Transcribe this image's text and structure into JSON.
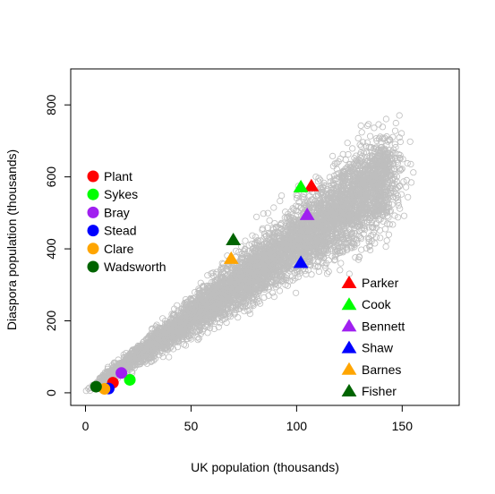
{
  "chart_data": {
    "type": "scatter",
    "xlabel": "UK population (thousands)",
    "ylabel": "Diaspora population (thousands)",
    "xlim": [
      -7,
      177
    ],
    "ylim": [
      -35,
      900
    ],
    "x_ticks": [
      0,
      50,
      100,
      150
    ],
    "y_ticks": [
      0,
      200,
      400,
      600,
      800
    ],
    "x_tick_labels": [
      "0",
      "50",
      "100",
      "150"
    ],
    "y_tick_labels": [
      "0",
      "200",
      "400",
      "600",
      "800"
    ],
    "grid": false,
    "background_cloud": {
      "color": "#bebebe",
      "marker": "open-circle",
      "approx_points": 6000,
      "trend_slope_per_thousand": 4.2,
      "x_range": [
        0,
        170
      ],
      "y_range": [
        0,
        865
      ]
    },
    "highlight_circles": [
      {
        "name": "Plant",
        "color": "#ff0000",
        "x": 13,
        "y": 28
      },
      {
        "name": "Sykes",
        "color": "#00ff00",
        "x": 21,
        "y": 36
      },
      {
        "name": "Bray",
        "color": "#a020f0",
        "x": 17,
        "y": 55
      },
      {
        "name": "Stead",
        "color": "#0000ff",
        "x": 11,
        "y": 12
      },
      {
        "name": "Clare",
        "color": "#ffa500",
        "x": 9,
        "y": 11
      },
      {
        "name": "Wadsworth",
        "color": "#006400",
        "x": 5,
        "y": 17
      }
    ],
    "highlight_triangles": [
      {
        "name": "Parker",
        "color": "#ff0000",
        "x": 107,
        "y": 575
      },
      {
        "name": "Cook",
        "color": "#00ff00",
        "x": 102,
        "y": 572
      },
      {
        "name": "Bennett",
        "color": "#a020f0",
        "x": 105,
        "y": 495
      },
      {
        "name": "Shaw",
        "color": "#0000ff",
        "x": 102,
        "y": 362
      },
      {
        "name": "Barnes",
        "color": "#ffa500",
        "x": 69,
        "y": 373
      },
      {
        "name": "Fisher",
        "color": "#006400",
        "x": 70,
        "y": 425
      }
    ],
    "legends": [
      {
        "placement": "left-middle",
        "marker": "circle",
        "entries": [
          "Plant",
          "Sykes",
          "Bray",
          "Stead",
          "Clare",
          "Wadsworth"
        ]
      },
      {
        "placement": "bottom-right",
        "marker": "triangle",
        "entries": [
          "Parker",
          "Cook",
          "Bennett",
          "Shaw",
          "Barnes",
          "Fisher"
        ]
      }
    ]
  }
}
